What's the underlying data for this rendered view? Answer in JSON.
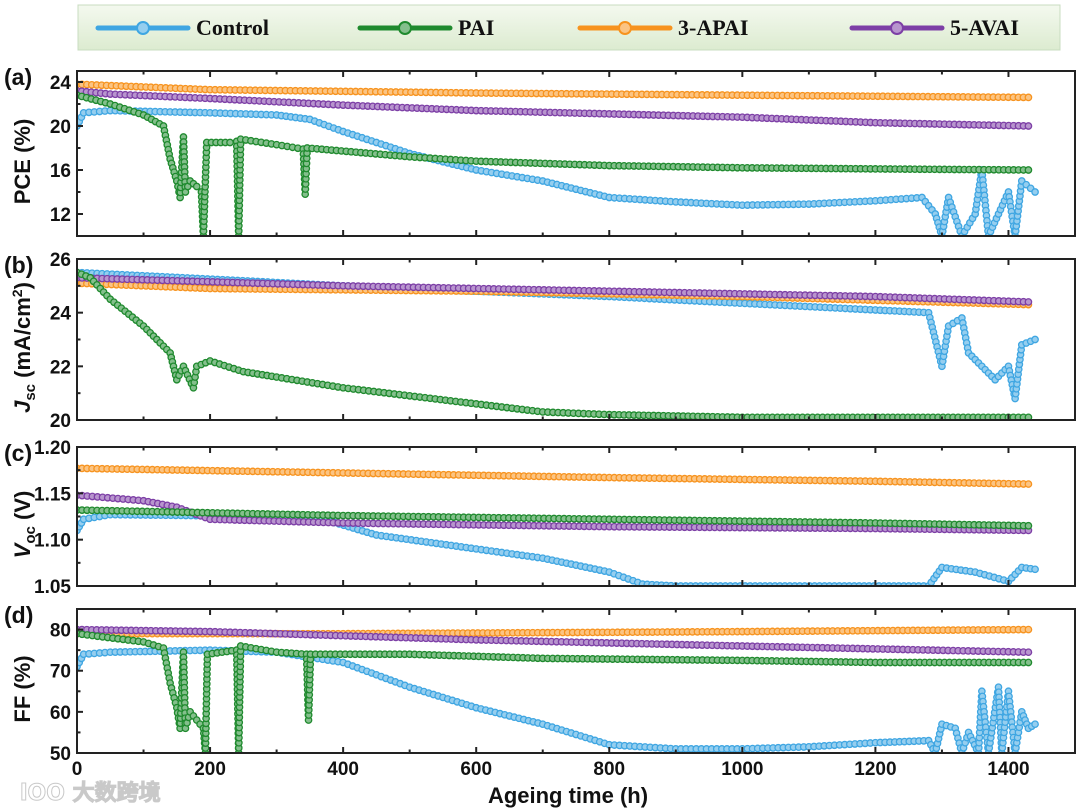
{
  "chart_data": {
    "type": "line",
    "xlabel": "Ageing time (h)",
    "xlim": [
      0,
      1500
    ],
    "xticks": [
      0,
      200,
      400,
      600,
      800,
      1000,
      1200,
      1400
    ],
    "xtick_labels": [
      "0",
      "200",
      "400",
      "600",
      "800",
      "1000",
      "1200",
      "1400"
    ],
    "legend": {
      "placement": "top",
      "entries": [
        {
          "name": "Control",
          "color": "#3fa6e2"
        },
        {
          "name": "PAI",
          "color": "#1f8a2e"
        },
        {
          "name": "3-APAI",
          "color": "#f7931e"
        },
        {
          "name": "5-AVAI",
          "color": "#7d3fa6"
        }
      ]
    },
    "panels": [
      {
        "label": "(a)",
        "ylabel": "PCE (%)",
        "ylabel_main": "PCE (%)",
        "ylabel_sub": "",
        "ylim": [
          10,
          25
        ],
        "yticks": [
          12,
          16,
          20,
          24
        ],
        "ytick_labels": [
          "12",
          "16",
          "20",
          "24"
        ],
        "series": {
          "Control": [
            [
              0,
              20
            ],
            [
              10,
              21.2
            ],
            [
              50,
              21.4
            ],
            [
              200,
              21.2
            ],
            [
              300,
              21
            ],
            [
              350,
              20.6
            ],
            [
              400,
              19.5
            ],
            [
              500,
              17.5
            ],
            [
              600,
              16
            ],
            [
              700,
              15
            ],
            [
              800,
              13.5
            ],
            [
              900,
              13.1
            ],
            [
              1000,
              12.8
            ],
            [
              1100,
              12.9
            ],
            [
              1200,
              13.2
            ],
            [
              1270,
              13.5
            ],
            [
              1290,
              12
            ],
            [
              1300,
              10
            ],
            [
              1310,
              13.5
            ],
            [
              1330,
              10
            ],
            [
              1350,
              12
            ],
            [
              1360,
              16
            ],
            [
              1370,
              10
            ],
            [
              1400,
              14
            ],
            [
              1410,
              10
            ],
            [
              1420,
              15
            ],
            [
              1440,
              14
            ]
          ],
          "PAI": [
            [
              0,
              22.8
            ],
            [
              50,
              22
            ],
            [
              100,
              21
            ],
            [
              130,
              20
            ],
            [
              140,
              17
            ],
            [
              150,
              15
            ],
            [
              155,
              13.5
            ],
            [
              160,
              19
            ],
            [
              163,
              14
            ],
            [
              170,
              15
            ],
            [
              180,
              14.5
            ],
            [
              187,
              14
            ],
            [
              190,
              10
            ],
            [
              195,
              18.5
            ],
            [
              230,
              18.5
            ],
            [
              240,
              18.6
            ],
            [
              243,
              10
            ],
            [
              246,
              18.8
            ],
            [
              300,
              18.3
            ],
            [
              340,
              17.9
            ],
            [
              343,
              13.8
            ],
            [
              346,
              18
            ],
            [
              500,
              17.2
            ],
            [
              600,
              16.8
            ],
            [
              800,
              16.4
            ],
            [
              1000,
              16.2
            ],
            [
              1200,
              16.1
            ],
            [
              1430,
              16
            ]
          ],
          "3-APAI": [
            [
              0,
              23.8
            ],
            [
              200,
              23.3
            ],
            [
              600,
              23
            ],
            [
              1000,
              22.8
            ],
            [
              1430,
              22.6
            ]
          ],
          "5-AVAI": [
            [
              0,
              23.2
            ],
            [
              50,
              22.9
            ],
            [
              200,
              22.5
            ],
            [
              400,
              21.9
            ],
            [
              600,
              21.4
            ],
            [
              800,
              21.1
            ],
            [
              1000,
              20.8
            ],
            [
              1200,
              20.3
            ],
            [
              1430,
              20
            ]
          ]
        }
      },
      {
        "label": "(b)",
        "ylabel": "Jsc (mA/cm2)",
        "ylabel_main": "J",
        "ylabel_sub": "sc",
        "ylabel_rest": " (mA/cm",
        "ylabel_sup": "2",
        "ylabel_end": ")",
        "ylim": [
          20,
          26
        ],
        "yticks": [
          20,
          22,
          24,
          26
        ],
        "ytick_labels": [
          "20",
          "22",
          "24",
          "26"
        ],
        "series": {
          "Control": [
            [
              0,
              25.5
            ],
            [
              400,
              25
            ],
            [
              800,
              24.6
            ],
            [
              1200,
              24.1
            ],
            [
              1280,
              24
            ],
            [
              1300,
              22
            ],
            [
              1310,
              23.5
            ],
            [
              1330,
              23.8
            ],
            [
              1340,
              22.5
            ],
            [
              1360,
              22
            ],
            [
              1380,
              21.5
            ],
            [
              1400,
              22
            ],
            [
              1410,
              20.8
            ],
            [
              1420,
              22.8
            ],
            [
              1440,
              23
            ]
          ],
          "PAI": [
            [
              0,
              25.5
            ],
            [
              20,
              25.3
            ],
            [
              50,
              24.5
            ],
            [
              100,
              23.5
            ],
            [
              140,
              22.5
            ],
            [
              150,
              21.5
            ],
            [
              160,
              22
            ],
            [
              175,
              21.2
            ],
            [
              180,
              22
            ],
            [
              200,
              22.2
            ],
            [
              250,
              21.8
            ],
            [
              300,
              21.6
            ],
            [
              400,
              21.2
            ],
            [
              500,
              20.9
            ],
            [
              600,
              20.6
            ],
            [
              700,
              20.3
            ],
            [
              800,
              20.2
            ],
            [
              1000,
              20.1
            ],
            [
              1430,
              20.1
            ]
          ],
          "3-APAI": [
            [
              0,
              25.1
            ],
            [
              200,
              24.9
            ],
            [
              600,
              24.8
            ],
            [
              1000,
              24.6
            ],
            [
              1430,
              24.3
            ]
          ],
          "5-AVAI": [
            [
              0,
              25.3
            ],
            [
              400,
              25
            ],
            [
              800,
              24.8
            ],
            [
              1200,
              24.6
            ],
            [
              1430,
              24.4
            ]
          ]
        }
      },
      {
        "label": "(c)",
        "ylabel": "Voc (V)",
        "ylabel_main": "V",
        "ylabel_sub": "oc",
        "ylabel_rest": " (V)",
        "ylim": [
          1.05,
          1.2
        ],
        "yticks": [
          1.05,
          1.1,
          1.15,
          1.2
        ],
        "ytick_labels": [
          "1.05",
          "1.10",
          "1.15",
          "1.20"
        ],
        "series": {
          "Control": [
            [
              0,
              1.11
            ],
            [
              10,
              1.122
            ],
            [
              50,
              1.127
            ],
            [
              300,
              1.125
            ],
            [
              380,
              1.12
            ],
            [
              450,
              1.105
            ],
            [
              600,
              1.09
            ],
            [
              700,
              1.08
            ],
            [
              800,
              1.065
            ],
            [
              850,
              1.052
            ],
            [
              900,
              1.05
            ],
            [
              1280,
              1.05
            ],
            [
              1300,
              1.07
            ],
            [
              1350,
              1.065
            ],
            [
              1400,
              1.055
            ],
            [
              1420,
              1.07
            ],
            [
              1440,
              1.068
            ]
          ],
          "PAI": [
            [
              0,
              1.132
            ],
            [
              400,
              1.126
            ],
            [
              800,
              1.122
            ],
            [
              1200,
              1.118
            ],
            [
              1430,
              1.115
            ]
          ],
          "3-APAI": [
            [
              0,
              1.177
            ],
            [
              400,
              1.172
            ],
            [
              800,
              1.167
            ],
            [
              1200,
              1.163
            ],
            [
              1430,
              1.16
            ]
          ],
          "5-AVAI": [
            [
              0,
              1.148
            ],
            [
              100,
              1.142
            ],
            [
              150,
              1.135
            ],
            [
              200,
              1.122
            ],
            [
              400,
              1.118
            ],
            [
              800,
              1.114
            ],
            [
              1200,
              1.112
            ],
            [
              1430,
              1.11
            ]
          ]
        }
      },
      {
        "label": "(d)",
        "ylabel": "FF (%)",
        "ylabel_main": "FF (%)",
        "ylabel_sub": "",
        "ylim": [
          50,
          85
        ],
        "yticks": [
          50,
          60,
          70,
          80
        ],
        "ytick_labels": [
          "50",
          "60",
          "70",
          "80"
        ],
        "series": {
          "Control": [
            [
              0,
              71
            ],
            [
              10,
              74
            ],
            [
              50,
              74.5
            ],
            [
              200,
              75
            ],
            [
              300,
              74.5
            ],
            [
              400,
              72
            ],
            [
              500,
              66
            ],
            [
              600,
              61
            ],
            [
              700,
              57
            ],
            [
              800,
              52
            ],
            [
              900,
              51
            ],
            [
              1000,
              51
            ],
            [
              1100,
              51.5
            ],
            [
              1200,
              52.5
            ],
            [
              1280,
              53
            ],
            [
              1290,
              50
            ],
            [
              1300,
              57
            ],
            [
              1320,
              56
            ],
            [
              1330,
              50
            ],
            [
              1340,
              55
            ],
            [
              1355,
              50
            ],
            [
              1360,
              65
            ],
            [
              1370,
              50
            ],
            [
              1385,
              66
            ],
            [
              1390,
              50
            ],
            [
              1400,
              65
            ],
            [
              1410,
              50
            ],
            [
              1420,
              60
            ],
            [
              1430,
              56
            ],
            [
              1440,
              57
            ]
          ],
          "PAI": [
            [
              0,
              79
            ],
            [
              100,
              77
            ],
            [
              130,
              75.5
            ],
            [
              140,
              67
            ],
            [
              150,
              61
            ],
            [
              155,
              56
            ],
            [
              160,
              74.5
            ],
            [
              163,
              56
            ],
            [
              170,
              60
            ],
            [
              180,
              58
            ],
            [
              190,
              56
            ],
            [
              193,
              50
            ],
            [
              196,
              74
            ],
            [
              240,
              75
            ],
            [
              243,
              50
            ],
            [
              246,
              76
            ],
            [
              300,
              74.5
            ],
            [
              345,
              74
            ],
            [
              348,
              58
            ],
            [
              351,
              74
            ],
            [
              500,
              74
            ],
            [
              700,
              73
            ],
            [
              1000,
              72.5
            ],
            [
              1200,
              72
            ],
            [
              1430,
              72
            ]
          ],
          "3-APAI": [
            [
              0,
              79
            ],
            [
              400,
              79
            ],
            [
              1000,
              79.5
            ],
            [
              1430,
              80
            ]
          ],
          "5-AVAI": [
            [
              0,
              80
            ],
            [
              200,
              79.5
            ],
            [
              600,
              77.5
            ],
            [
              1000,
              76
            ],
            [
              1430,
              74.5
            ]
          ]
        }
      }
    ]
  },
  "watermark": "大数跨境"
}
